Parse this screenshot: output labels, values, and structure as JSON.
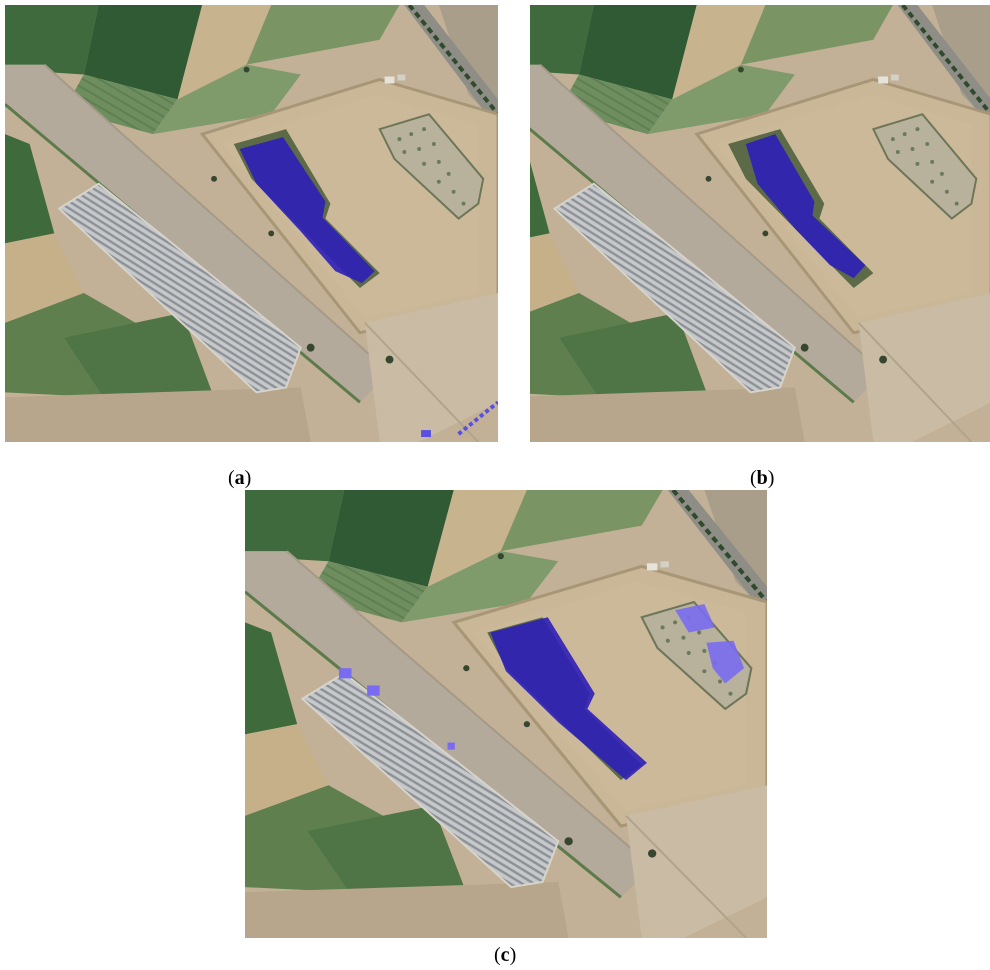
{
  "figure": {
    "panels": [
      {
        "id": "a",
        "label": "a"
      },
      {
        "id": "b",
        "label": "b"
      },
      {
        "id": "c",
        "label": "c"
      }
    ]
  },
  "colors": {
    "segmentation_dark": "#2e1fb8",
    "segmentation_light": "#7a6cf0",
    "field_dark_green": "#3f6b3c",
    "field_light_green": "#6f8e5f",
    "bare_soil": "#bfae94",
    "road": "#b3aa9b",
    "solar_panels": "#b9bcbf"
  },
  "icons": {
    "overlay": "segmentation-mask-icon"
  }
}
